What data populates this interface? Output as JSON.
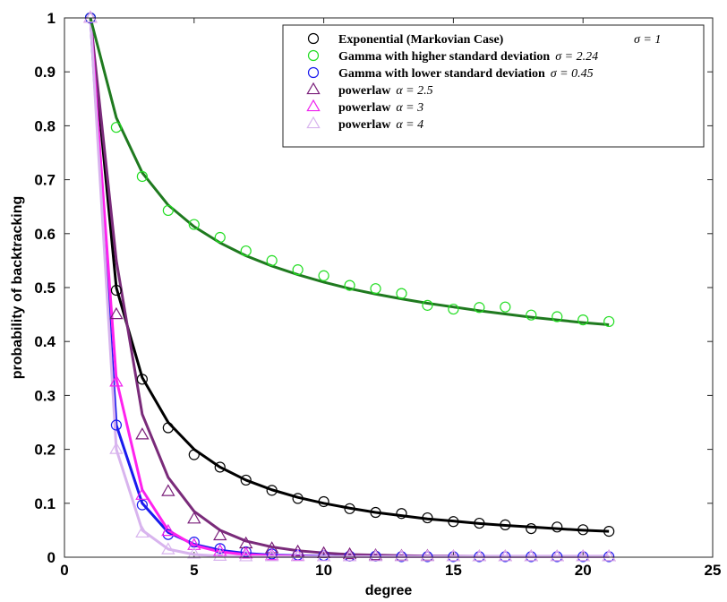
{
  "chart_data": {
    "type": "line",
    "title": "",
    "xlabel": "degree",
    "ylabel": "probability of backtracking",
    "xlim": [
      0,
      25
    ],
    "ylim": [
      0,
      1
    ],
    "xticks": [
      "0",
      "5",
      "10",
      "15",
      "20",
      "25"
    ],
    "yticks": [
      "0",
      "0.1",
      "0.2",
      "0.3",
      "0.4",
      "0.5",
      "0.6",
      "0.7",
      "0.8",
      "0.9",
      "1"
    ],
    "grid": false,
    "legend_position": "top-right",
    "x": [
      1,
      2,
      3,
      4,
      5,
      6,
      7,
      8,
      9,
      10,
      11,
      12,
      13,
      14,
      15,
      16,
      17,
      18,
      19,
      20,
      21
    ],
    "series": [
      {
        "name": "Exponential (Markovian Case)",
        "param": "σ = 1",
        "marker": "circle",
        "marker_color": "#000000",
        "line_color": "#000000",
        "markers": [
          1.0,
          0.495,
          0.33,
          0.24,
          0.19,
          0.167,
          0.143,
          0.124,
          0.109,
          0.103,
          0.09,
          0.083,
          0.081,
          0.073,
          0.066,
          0.063,
          0.06,
          0.053,
          0.056,
          0.051,
          0.048
        ],
        "fit": [
          1.0,
          0.5,
          0.333,
          0.25,
          0.2,
          0.167,
          0.143,
          0.125,
          0.111,
          0.1,
          0.091,
          0.083,
          0.077,
          0.071,
          0.067,
          0.0625,
          0.059,
          0.056,
          0.053,
          0.05,
          0.048
        ]
      },
      {
        "name": "Gamma with higher standard deviation",
        "param": "σ = 2.24",
        "marker": "circle",
        "marker_color": "#22dd22",
        "line_color": "#1f7a1f",
        "markers": [
          1.0,
          0.797,
          0.706,
          0.643,
          0.617,
          0.593,
          0.568,
          0.55,
          0.533,
          0.522,
          0.504,
          0.498,
          0.489,
          0.467,
          0.46,
          0.463,
          0.464,
          0.449,
          0.446,
          0.44,
          0.437
        ],
        "fit": [
          1.0,
          0.815,
          0.713,
          0.653,
          0.613,
          0.583,
          0.559,
          0.54,
          0.524,
          0.51,
          0.498,
          0.488,
          0.479,
          0.471,
          0.464,
          0.457,
          0.451,
          0.445,
          0.44,
          0.435,
          0.431
        ]
      },
      {
        "name": "Gamma with lower standard deviation",
        "param": "σ = 0.45",
        "marker": "circle",
        "marker_color": "#1a1aee",
        "line_color": "#1a1aee",
        "markers": [
          1.0,
          0.245,
          0.097,
          0.042,
          0.028,
          0.016,
          0.01,
          0.006,
          0.004,
          0.003,
          0.002,
          0.002,
          0.001,
          0.001,
          0.001,
          0.001,
          0.001,
          0.001,
          0.001,
          0.001,
          0.001
        ],
        "fit": [
          1.0,
          0.245,
          0.1,
          0.046,
          0.024,
          0.013,
          0.007,
          0.004,
          0.003,
          0.002,
          0.001,
          0.001,
          0.001,
          0.001,
          0.001,
          0.001,
          0.001,
          0.001,
          0.001,
          0.001,
          0.001
        ]
      },
      {
        "name": "powerlaw",
        "param": "α = 2.5",
        "marker": "triangle",
        "marker_color": "#7a1f7a",
        "line_color": "#7a2b7a",
        "markers": [
          1.0,
          0.45,
          0.227,
          0.122,
          0.071,
          0.04,
          0.025,
          0.016,
          0.01,
          0.007,
          0.005,
          0.003,
          0.002,
          0.002,
          0.001,
          0.001,
          0.001,
          0.001,
          0.001,
          0.001,
          0.001
        ],
        "fit": [
          1.0,
          0.55,
          0.265,
          0.148,
          0.085,
          0.05,
          0.03,
          0.019,
          0.012,
          0.008,
          0.005,
          0.004,
          0.003,
          0.002,
          0.002,
          0.001,
          0.001,
          0.001,
          0.001,
          0.001,
          0.001
        ]
      },
      {
        "name": "powerlaw",
        "param": "α = 3",
        "marker": "triangle",
        "marker_color": "#ee22ee",
        "line_color": "#ff22ee",
        "markers": [
          1.0,
          0.325,
          0.115,
          0.048,
          0.022,
          0.011,
          0.006,
          0.003,
          0.002,
          0.001,
          0.001,
          0.001,
          0.001,
          0.001,
          0.001,
          0.001,
          0.001,
          0.001,
          0.001,
          0.001,
          0.001
        ],
        "fit": [
          1.0,
          0.33,
          0.125,
          0.05,
          0.022,
          0.01,
          0.005,
          0.003,
          0.002,
          0.001,
          0.001,
          0.001,
          0.001,
          0.001,
          0.001,
          0.001,
          0.001,
          0.001,
          0.001,
          0.001,
          0.001
        ]
      },
      {
        "name": "powerlaw",
        "param": "α = 4",
        "marker": "triangle",
        "marker_color": "#d8b4ee",
        "line_color": "#d8b4ee",
        "markers": [
          1.0,
          0.2,
          0.045,
          0.014,
          0.006,
          0.002,
          0.001,
          0.001,
          0.001,
          0.001,
          0.001,
          0.001,
          0.001,
          0.001,
          0.001,
          0.001,
          0.001,
          0.001,
          0.001,
          0.001,
          0.001
        ],
        "fit": [
          1.0,
          0.2,
          0.05,
          0.015,
          0.005,
          0.002,
          0.001,
          0.001,
          0.001,
          0.001,
          0.001,
          0.001,
          0.001,
          0.001,
          0.001,
          0.001,
          0.001,
          0.001,
          0.001,
          0.001,
          0.001
        ]
      }
    ]
  }
}
